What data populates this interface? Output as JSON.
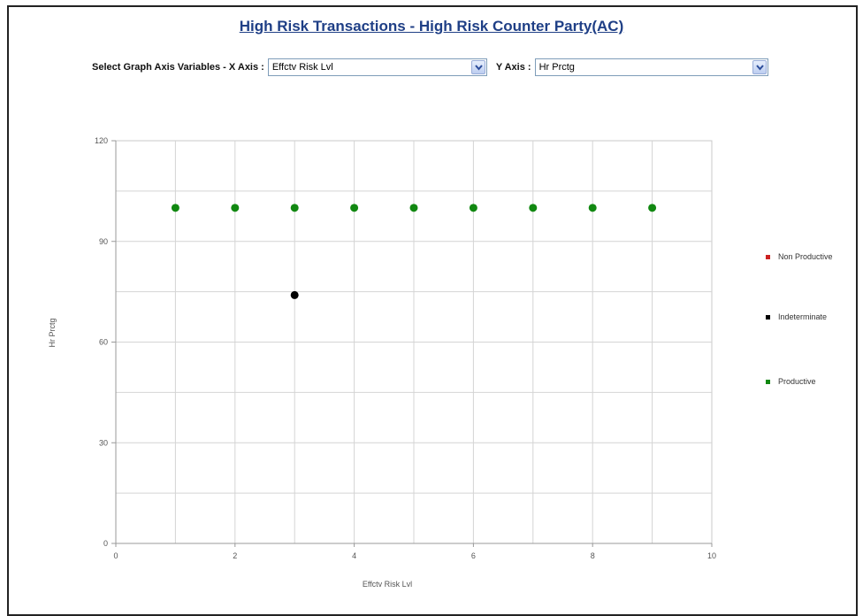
{
  "page": {
    "title": "High Risk Transactions - High Risk Counter Party(AC)"
  },
  "controls": {
    "prefix_label": "Select Graph Axis Variables - X Axis :",
    "x_axis_value": "Effctv Risk Lvl",
    "y_axis_label": "Y Axis :",
    "y_axis_value": "Hr Prctg"
  },
  "chart_data": {
    "type": "scatter",
    "xlabel": "Effctv Risk Lvl",
    "ylabel": "Hr Prctg",
    "xlim": [
      0,
      10
    ],
    "ylim": [
      0,
      120
    ],
    "x_ticks": [
      0,
      2,
      4,
      6,
      8,
      10
    ],
    "y_ticks": [
      0,
      30,
      60,
      90,
      120
    ],
    "grid": true,
    "legend_position": "right",
    "series": [
      {
        "name": "Non Productive",
        "color": "#cc2222",
        "points": []
      },
      {
        "name": "Indeterminate",
        "color": "#000000",
        "points": [
          [
            3,
            74
          ]
        ]
      },
      {
        "name": "Productive",
        "color": "#118811",
        "points": [
          [
            1,
            100
          ],
          [
            2,
            100
          ],
          [
            3,
            100
          ],
          [
            4,
            100
          ],
          [
            5,
            100
          ],
          [
            6,
            100
          ],
          [
            7,
            100
          ],
          [
            8,
            100
          ],
          [
            9,
            100
          ]
        ]
      }
    ]
  }
}
